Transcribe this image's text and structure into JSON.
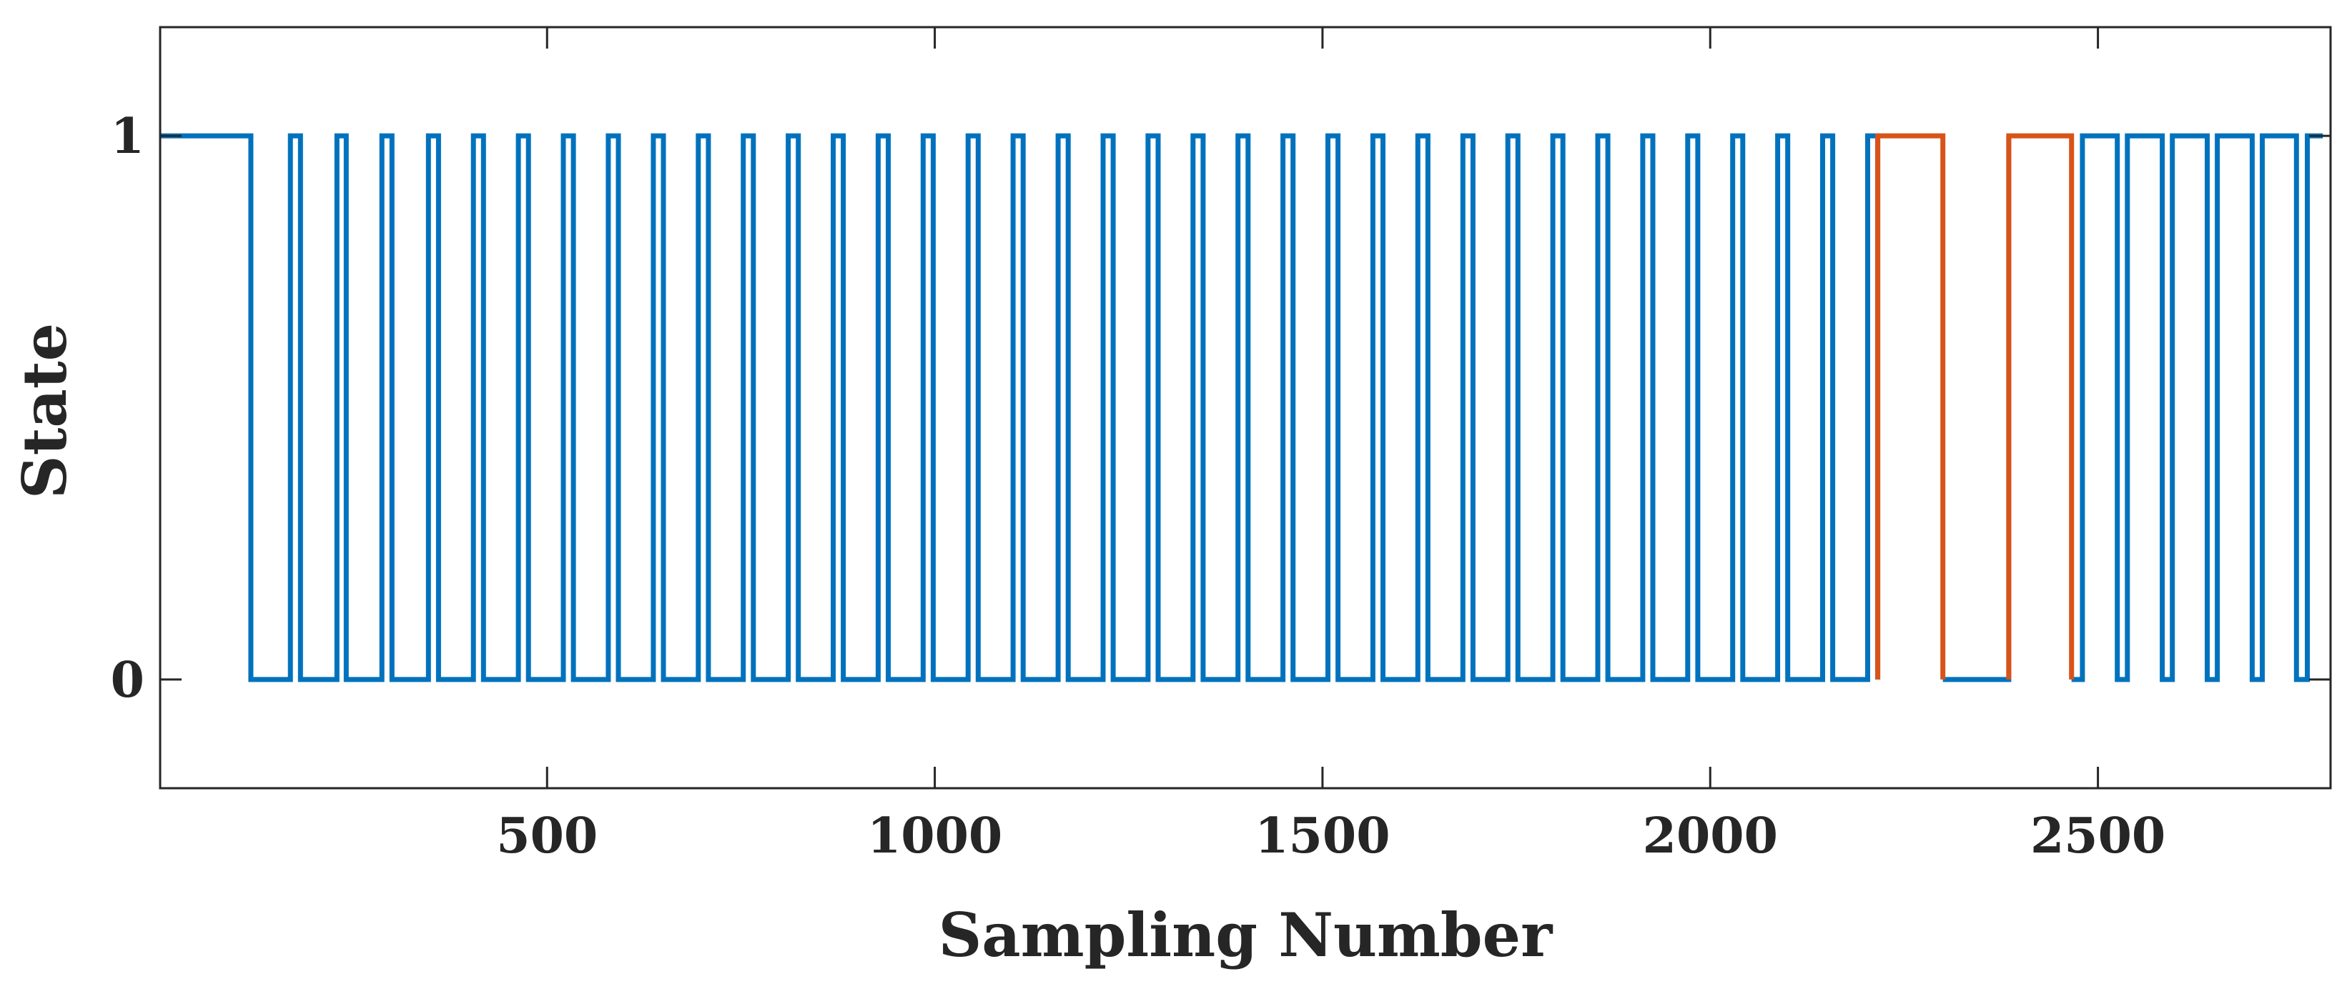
{
  "chart_data": {
    "type": "line",
    "title": "",
    "xlabel": "Sampling Number",
    "ylabel": "State",
    "xlim": [
      1,
      2800
    ],
    "ylim": [
      -0.2,
      1.2
    ],
    "x_ticks": [
      500,
      1000,
      1500,
      2000,
      2500
    ],
    "x_tick_labels": [
      "500",
      "1000",
      "1500",
      "2000",
      "2500"
    ],
    "y_ticks": [
      0,
      1
    ],
    "y_tick_labels": [
      "0",
      "1"
    ],
    "grid": false,
    "legend": false,
    "step": true,
    "series": [
      {
        "color": "#0072BD",
        "segments": [
          {
            "start_value": 1,
            "transitions": [
              118,
              169,
              182,
              229,
              241,
              287,
              300,
              347,
              360,
              405,
              418,
              463,
              476,
              521,
              534,
              579,
              592,
              637,
              650,
              695,
              708,
              753,
              766,
              811,
              824,
              869,
              882,
              927,
              940,
              985,
              998,
              1043,
              1056,
              1101,
              1114,
              1159,
              1172,
              1217,
              1230,
              1275,
              1288,
              1333,
              1346,
              1391,
              1404,
              1449,
              1462,
              1507,
              1520,
              1565,
              1578,
              1623,
              1636,
              1681,
              1694,
              1739,
              1752,
              1797,
              1810,
              1855,
              1868,
              1913,
              1926,
              1971,
              1984,
              2029,
              2042,
              2087,
              2100,
              2145,
              2158,
              2203,
              2216
            ],
            "end": 2216
          },
          {
            "start_value": 0,
            "x_start": 2300,
            "transitions": [
              2385
            ],
            "end": 2385
          },
          {
            "start_value": 0,
            "x_start": 2466,
            "transitions": [
              2480,
              2525,
              2538,
              2583,
              2596,
              2641,
              2654,
              2699,
              2712,
              2756,
              2770
            ],
            "end": 2790
          }
        ]
      },
      {
        "color": "#D95319",
        "segments": [
          {
            "start_value": 0,
            "x_start": 2216,
            "transitions": [
              2216,
              2300
            ],
            "end": 2300
          },
          {
            "start_value": 0,
            "x_start": 2385,
            "transitions": [
              2385,
              2466
            ],
            "end": 2466
          }
        ]
      }
    ]
  }
}
